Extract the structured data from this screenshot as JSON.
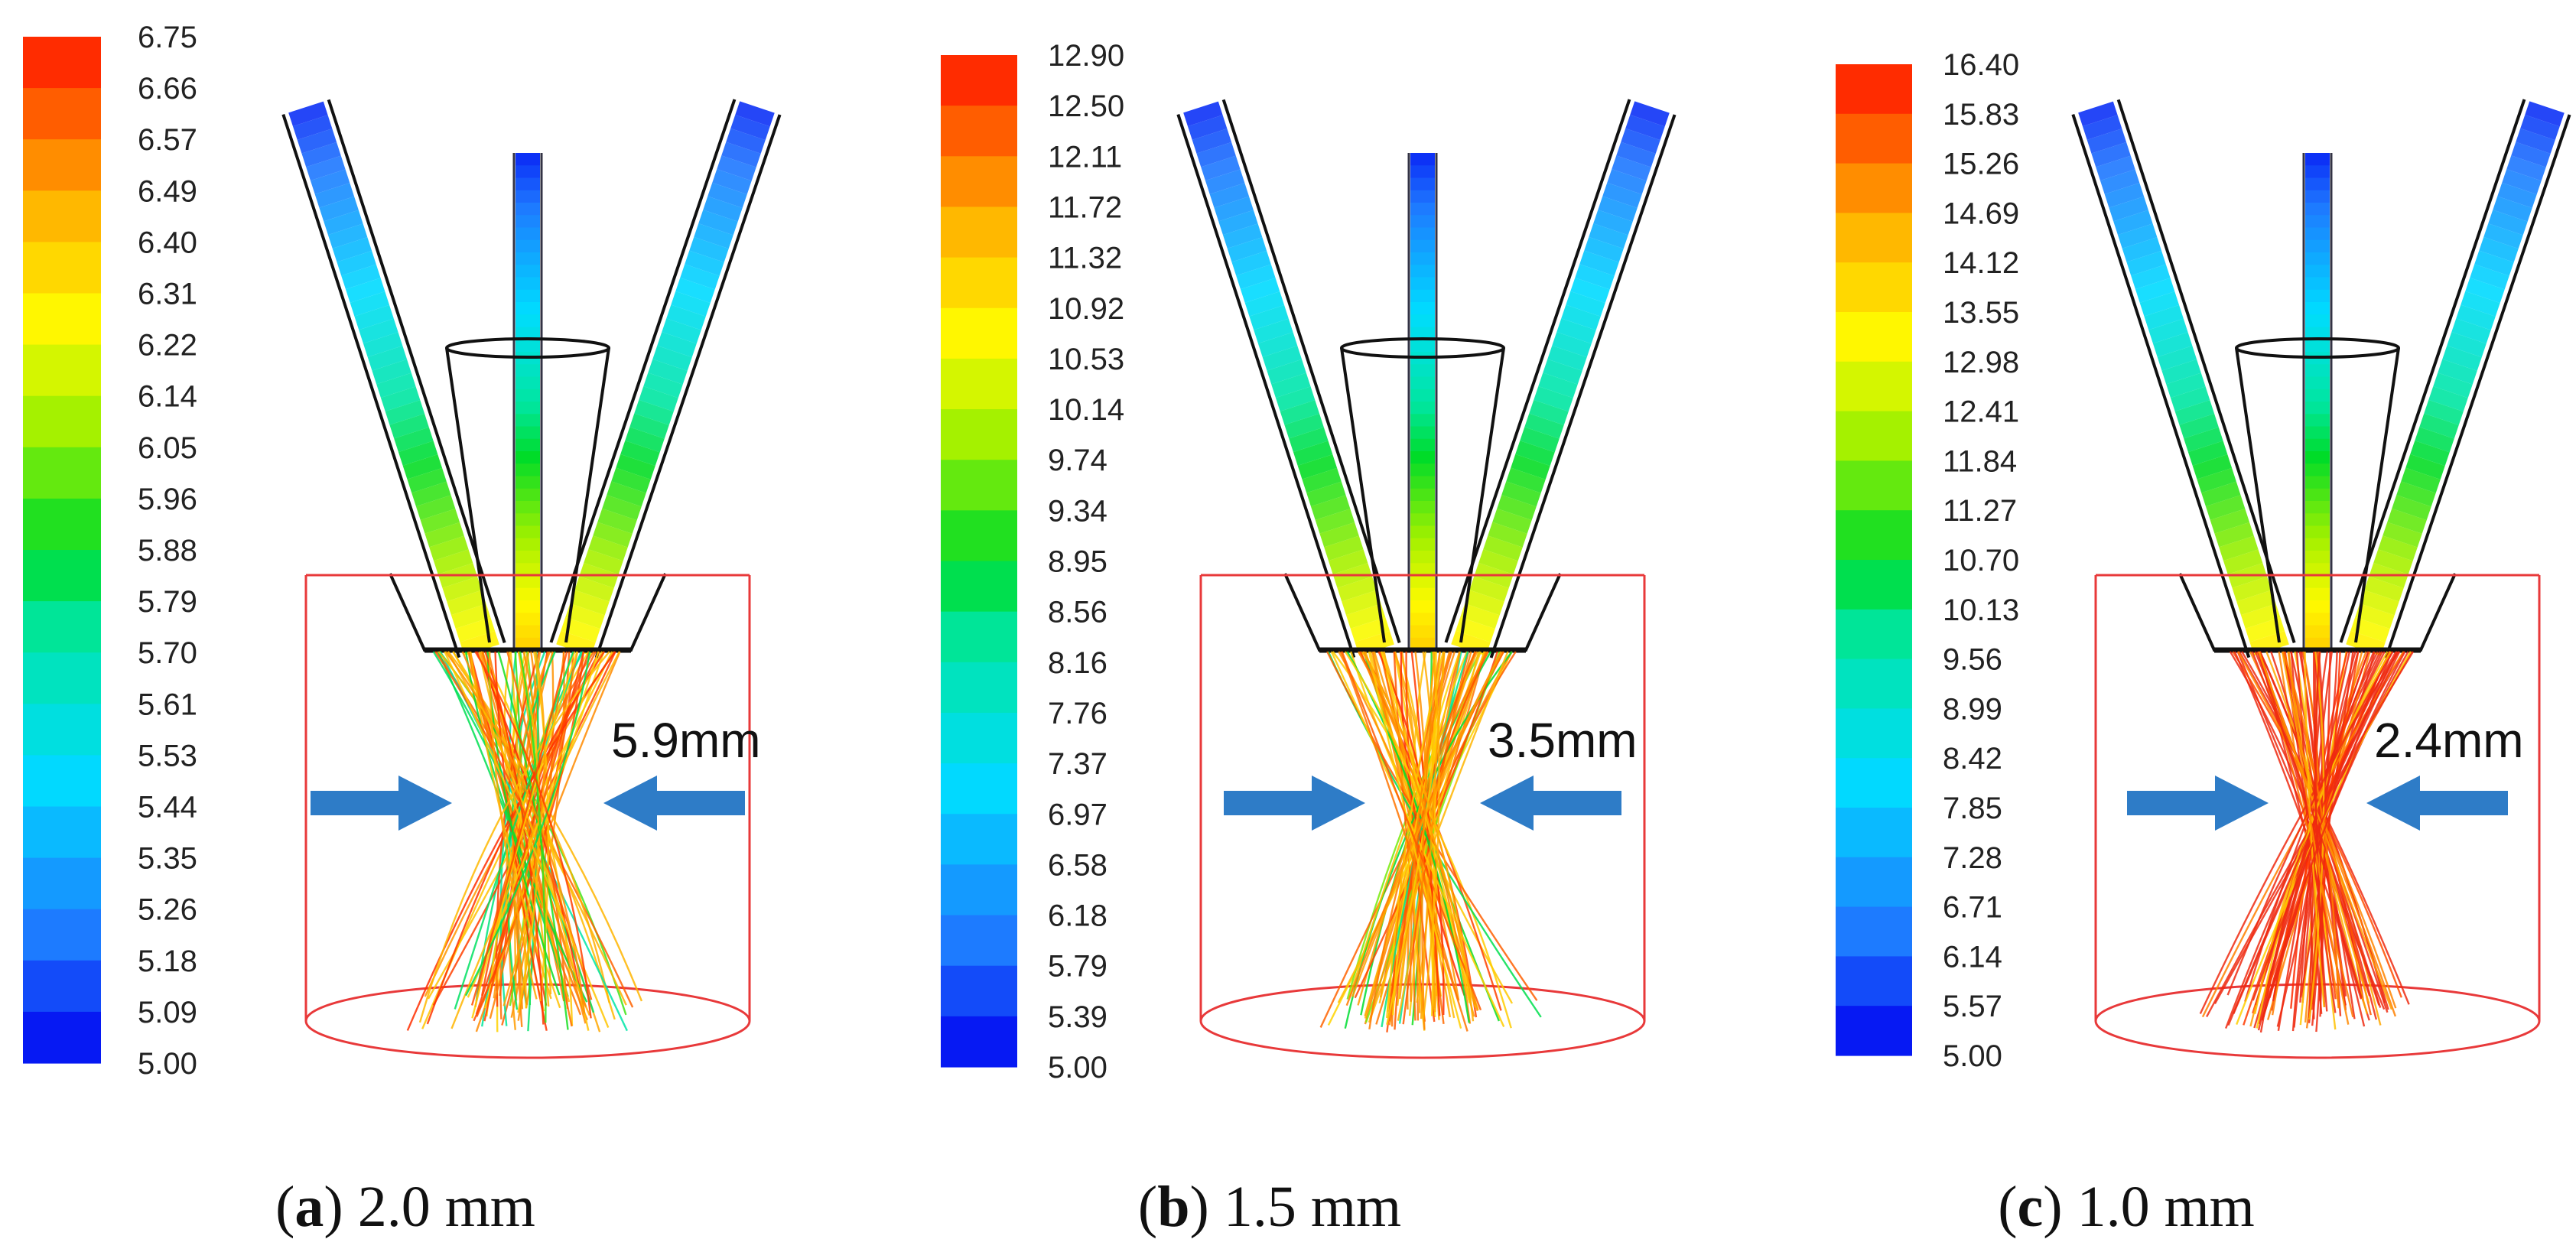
{
  "panels": [
    {
      "id": "a",
      "caption_letter": "a",
      "caption_value": "2.0 mm",
      "measurement": "5.9mm",
      "colorbar_ticks": [
        "6.75",
        "6.66",
        "6.57",
        "6.49",
        "6.40",
        "6.31",
        "6.22",
        "6.14",
        "6.05",
        "5.96",
        "5.88",
        "5.79",
        "5.70",
        "5.61",
        "5.53",
        "5.44",
        "5.35",
        "5.26",
        "5.18",
        "5.09",
        "5.00"
      ],
      "beam_color": "#f2a400",
      "waist": 5.9
    },
    {
      "id": "b",
      "caption_letter": "b",
      "caption_value": "1.5 mm",
      "measurement": "3.5mm",
      "colorbar_ticks": [
        "12.90",
        "12.50",
        "12.11",
        "11.72",
        "11.32",
        "10.92",
        "10.53",
        "10.14",
        "9.74",
        "9.34",
        "8.95",
        "8.56",
        "8.16",
        "7.76",
        "7.37",
        "6.97",
        "6.58",
        "6.18",
        "5.79",
        "5.39",
        "5.00"
      ],
      "beam_color": "#f08a00",
      "waist": 3.5
    },
    {
      "id": "c",
      "caption_letter": "c",
      "caption_value": "1.0 mm",
      "measurement": "2.4mm",
      "colorbar_ticks": [
        "16.40",
        "15.83",
        "15.26",
        "14.69",
        "14.12",
        "13.55",
        "12.98",
        "12.41",
        "11.84",
        "11.27",
        "10.70",
        "10.13",
        "9.56",
        "8.99",
        "8.42",
        "7.85",
        "7.28",
        "6.71",
        "6.14",
        "5.57",
        "5.00"
      ],
      "beam_color": "#ee3010",
      "waist": 2.4
    }
  ],
  "colors": {
    "arrow": "#2e7cc7",
    "workpiece_box": "#e8393a",
    "outline": "#111111"
  }
}
